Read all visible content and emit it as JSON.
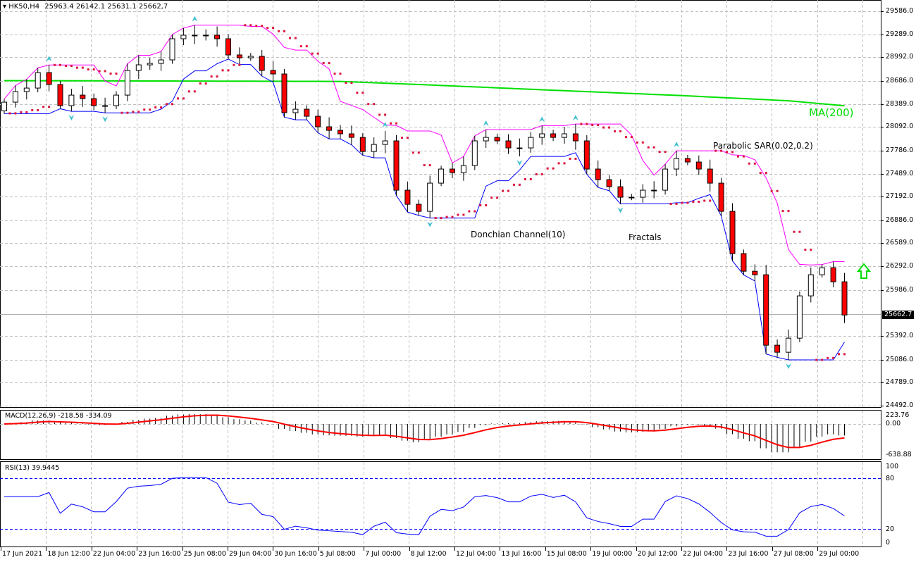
{
  "header": {
    "symbol": "HK50,H4",
    "ohlc": "25963.4 26142.1 25631.1 25662,7"
  },
  "annotations": {
    "ma": "MA(200)",
    "sar": "Parabolic SAR(0.02,0.2)",
    "donchian": "Donchian Channel(10)",
    "fractals": "Fractals"
  },
  "colors": {
    "bull": "#ffffff",
    "bear": "#ff0000",
    "ma": "#00e000",
    "donchian_upper": "#ff00ff",
    "donchian_lower": "#0000ff",
    "sar": "#dc143c",
    "fractal": "#40c0d0",
    "macd_signal": "#ff0000",
    "rsi": "#0000ff",
    "grid": "#c0c0c0",
    "arrow": "#00dd00"
  },
  "price_axis": [
    "29586.0",
    "29289.0",
    "28992.0",
    "28686.0",
    "28389.0",
    "28092.0",
    "27786.0",
    "27489.0",
    "27192.0",
    "26886.0",
    "26589.0",
    "26292.0",
    "25986.0",
    "25392.0",
    "25086.0",
    "24789.0",
    "24492.0"
  ],
  "current_price": "25662.7",
  "macd": {
    "label": "MACD(12,26,9) -218.58 -334.09",
    "axis": [
      "223.76",
      "0.00",
      "-638.88"
    ]
  },
  "rsi": {
    "label": "RSI(13) 39.9445",
    "axis": [
      "100",
      "80",
      "20",
      "0"
    ]
  },
  "time_axis": [
    "17 Jun 2021",
    "18 Jun 12:00",
    "22 Jun 04:00",
    "23 Jun 16:00",
    "25 Jun 08:00",
    "29 Jun 04:00",
    "30 Jun 16:00",
    "5 Jul 08:00",
    "7 Jul 00:00",
    "8 Jul 12:00",
    "12 Jul 04:00",
    "13 Jul 16:00",
    "15 Jul 08:00",
    "19 Jul 00:00",
    "20 Jul 12:00",
    "22 Jul 04:00",
    "23 Jul 16:00",
    "27 Jul 08:00",
    "29 Jul 00:00"
  ],
  "chart_data": {
    "type": "candlestick",
    "ylim": [
      24492,
      29586
    ],
    "open_first": 28300,
    "closes": [
      28412,
      28549,
      28594,
      28794,
      28640,
      28367,
      28503,
      28458,
      28367,
      28367,
      28503,
      28822,
      28894,
      28913,
      28958,
      29231,
      29277,
      29277,
      29277,
      29231,
      29022,
      28985,
      29004,
      28822,
      28776,
      28276,
      28321,
      28230,
      28094,
      28048,
      28003,
      27957,
      27775,
      27866,
      27912,
      27275,
      27093,
      27002,
      27366,
      27548,
      27502,
      27593,
      27912,
      27957,
      27912,
      27821,
      27821,
      27957,
      28003,
      27957,
      28003,
      27912,
      27548,
      27411,
      27320,
      27184,
      27184,
      27275,
      27275,
      27548,
      27684,
      27639,
      27548,
      27366,
      27002,
      26456,
      26228,
      26183,
      25273,
      25182,
      25364,
      25910,
      26183,
      26274,
      26092,
      25662.7
    ],
    "ma200": [
      [
        0,
        28690
      ],
      [
        30,
        28680
      ],
      [
        37,
        28640
      ],
      [
        50,
        28560
      ],
      [
        60,
        28500
      ],
      [
        70,
        28430
      ],
      [
        80,
        28300
      ],
      [
        88,
        28150
      ],
      [
        95,
        28040
      ]
    ],
    "signal": "buy-arrow"
  }
}
